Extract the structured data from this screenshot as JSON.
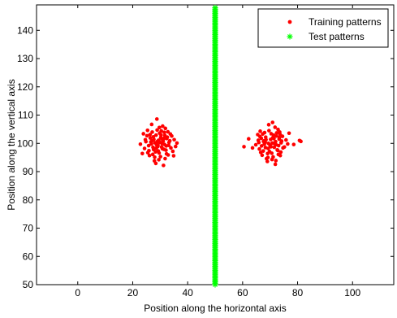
{
  "chart_data": {
    "type": "scatter",
    "title": "",
    "xlabel": "Position along the horizontal axis",
    "ylabel": "Position along the vertical axis",
    "xlim": [
      -15,
      115
    ],
    "ylim": [
      50,
      149
    ],
    "xticks": [
      0,
      20,
      40,
      60,
      80,
      100
    ],
    "yticks": [
      50,
      60,
      70,
      80,
      90,
      100,
      110,
      120,
      130,
      140
    ],
    "grid": false,
    "legend_position": "top-right",
    "series": [
      {
        "name": "Training patterns",
        "marker": "dot",
        "color": "#ff0000",
        "points": [
          [
            28.1,
            100.2
          ],
          [
            30.5,
            98.7
          ],
          [
            26.4,
            101.9
          ],
          [
            32.2,
            99.1
          ],
          [
            29.8,
            103.6
          ],
          [
            25.9,
            97.4
          ],
          [
            31.7,
            102.8
          ],
          [
            27.3,
            96.1
          ],
          [
            33.5,
            100.9
          ],
          [
            24.8,
            100.6
          ],
          [
            30.1,
            95.3
          ],
          [
            28.9,
            104.7
          ],
          [
            35.1,
            101.3
          ],
          [
            26.8,
            99.8
          ],
          [
            31.3,
            97.9
          ],
          [
            29.4,
            101.1
          ],
          [
            22.8,
            99.7
          ],
          [
            34.6,
            97.2
          ],
          [
            27.9,
            93.8
          ],
          [
            30.9,
            106.1
          ],
          [
            25.2,
            102.7
          ],
          [
            32.8,
            104.1
          ],
          [
            28.6,
            98.3
          ],
          [
            29.9,
            100.4
          ],
          [
            36.1,
            100.1
          ],
          [
            23.9,
            103.4
          ],
          [
            31.8,
            94.6
          ],
          [
            27.5,
            102.3
          ],
          [
            33.9,
            98.4
          ],
          [
            26.1,
            95.7
          ],
          [
            30.3,
            103.0
          ],
          [
            28.3,
            97.0
          ],
          [
            32.4,
            101.7
          ],
          [
            29.2,
            99.4
          ],
          [
            24.3,
            98.2
          ],
          [
            31.1,
            100.8
          ],
          [
            27.1,
            104.0
          ],
          [
            34.2,
            102.6
          ],
          [
            30.7,
            99.9
          ],
          [
            26.6,
            100.5
          ],
          [
            29.6,
            96.6
          ],
          [
            32.9,
            95.9
          ],
          [
            28.8,
            108.6
          ],
          [
            25.5,
            96.7
          ],
          [
            31.5,
            103.9
          ],
          [
            27.7,
            101.4
          ],
          [
            33.2,
            100.3
          ],
          [
            29.1,
            98.9
          ],
          [
            30.2,
            102.1
          ],
          [
            26.3,
            103.1
          ],
          [
            32.1,
            97.6
          ],
          [
            28.4,
            92.9
          ],
          [
            35.6,
            98.9
          ],
          [
            24.6,
            101.3
          ],
          [
            31.9,
            105.3
          ],
          [
            27.4,
            98.6
          ],
          [
            30.6,
            101.6
          ],
          [
            28.0,
            95.1
          ],
          [
            33.7,
            103.3
          ],
          [
            25.8,
            99.2
          ],
          [
            29.5,
            94.2
          ],
          [
            31.6,
            99.6
          ],
          [
            27.0,
            100.9
          ],
          [
            32.6,
            102.2
          ],
          [
            29.3,
            97.3
          ],
          [
            34.9,
            95.6
          ],
          [
            26.9,
            106.7
          ],
          [
            30.8,
            98.1
          ],
          [
            28.5,
            102.9
          ],
          [
            31.2,
            92.2
          ],
          [
            23.5,
            96.4
          ],
          [
            33.1,
            99.3
          ],
          [
            27.6,
            97.8
          ],
          [
            30.4,
            104.4
          ],
          [
            29.0,
            100.7
          ],
          [
            32.3,
            96.3
          ],
          [
            25.4,
            104.6
          ],
          [
            28.7,
            99.5
          ],
          [
            31.4,
            101.8
          ],
          [
            29.7,
            105.6
          ],
          [
            68.2,
            100.4
          ],
          [
            71.5,
            98.6
          ],
          [
            66.8,
            101.8
          ],
          [
            73.1,
            99.2
          ],
          [
            70.4,
            103.4
          ],
          [
            67.5,
            97.3
          ],
          [
            72.3,
            102.6
          ],
          [
            69.1,
            96.4
          ],
          [
            74.2,
            100.8
          ],
          [
            65.9,
            100.3
          ],
          [
            71.1,
            95.2
          ],
          [
            69.6,
            104.5
          ],
          [
            75.8,
            101.2
          ],
          [
            67.9,
            99.7
          ],
          [
            72.6,
            97.7
          ],
          [
            70.2,
            101.4
          ],
          [
            64.8,
            99.5
          ],
          [
            73.9,
            96.9
          ],
          [
            68.7,
            94.6
          ],
          [
            71.8,
            105.7
          ],
          [
            66.3,
            102.4
          ],
          [
            73.5,
            104.0
          ],
          [
            69.3,
            98.2
          ],
          [
            70.8,
            100.1
          ],
          [
            76.4,
            99.8
          ],
          [
            65.5,
            103.1
          ],
          [
            72.1,
            93.9
          ],
          [
            68.4,
            102.2
          ],
          [
            74.7,
            98.4
          ],
          [
            67.1,
            95.8
          ],
          [
            71.3,
            102.9
          ],
          [
            69.8,
            97.1
          ],
          [
            73.3,
            101.5
          ],
          [
            70.0,
            99.3
          ],
          [
            66.1,
            98.0
          ],
          [
            72.0,
            100.6
          ],
          [
            68.0,
            103.8
          ],
          [
            74.5,
            102.5
          ],
          [
            71.6,
            99.9
          ],
          [
            67.6,
            100.7
          ],
          [
            70.6,
            96.5
          ],
          [
            73.7,
            95.7
          ],
          [
            69.5,
            106.6
          ],
          [
            66.6,
            96.8
          ],
          [
            72.4,
            103.7
          ],
          [
            68.5,
            101.3
          ],
          [
            74.0,
            100.2
          ],
          [
            70.3,
            98.8
          ],
          [
            71.0,
            102.0
          ],
          [
            67.3,
            103.3
          ],
          [
            72.8,
            97.5
          ],
          [
            69.0,
            93.6
          ],
          [
            75.2,
            98.7
          ],
          [
            65.7,
            101.1
          ],
          [
            72.9,
            104.9
          ],
          [
            68.3,
            98.5
          ],
          [
            71.4,
            101.7
          ],
          [
            69.2,
            95.0
          ],
          [
            73.6,
            103.2
          ],
          [
            66.9,
            99.1
          ],
          [
            70.7,
            94.3
          ],
          [
            72.2,
            99.5
          ],
          [
            67.8,
            100.9
          ],
          [
            73.4,
            102.1
          ],
          [
            60.5,
            98.8
          ],
          [
            78.6,
            99.6
          ],
          [
            81.2,
            100.7
          ],
          [
            80.7,
            101.0
          ],
          [
            62.2,
            101.6
          ],
          [
            63.6,
            98.4
          ],
          [
            76.9,
            103.6
          ],
          [
            66.4,
            104.3
          ],
          [
            71.9,
            92.6
          ],
          [
            70.9,
            107.4
          ],
          [
            69.4,
            100.0
          ],
          [
            73.0,
            96.1
          ]
        ]
      },
      {
        "name": "Test patterns",
        "marker": "star",
        "color": "#00ff00",
        "x": 50,
        "y_start": 50,
        "y_end": 148,
        "y_step": 0.5
      }
    ]
  }
}
